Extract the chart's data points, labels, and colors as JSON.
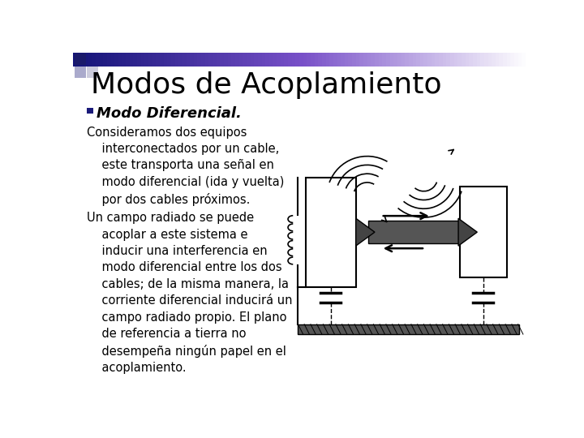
{
  "title": "Modos de Acoplamiento",
  "bullet_text": "Modo Diferencial.",
  "paragraph1_lines": [
    "Consideramos dos equipos",
    "    interconectados por un cable,",
    "    este transporta una señal en",
    "    modo diferencial (ida y vuelta)",
    "    por dos cables próximos."
  ],
  "paragraph2_lines": [
    "Un campo radiado se puede",
    "    acoplar a este sistema e",
    "    inducir una interferencia en",
    "    modo diferencial entre los dos",
    "    cables; de la misma manera, la",
    "    corriente diferencial inducirá un",
    "    campo radiado propio. El plano",
    "    de referencia a tierra no",
    "    desempeña ningún papel en el",
    "    acoplamiento."
  ],
  "bg_color": "#ffffff",
  "title_color": "#000000",
  "title_fontsize": 26,
  "bullet_fontsize": 13,
  "body_fontsize": 10.5,
  "bullet_square_color": "#1a1a7a"
}
